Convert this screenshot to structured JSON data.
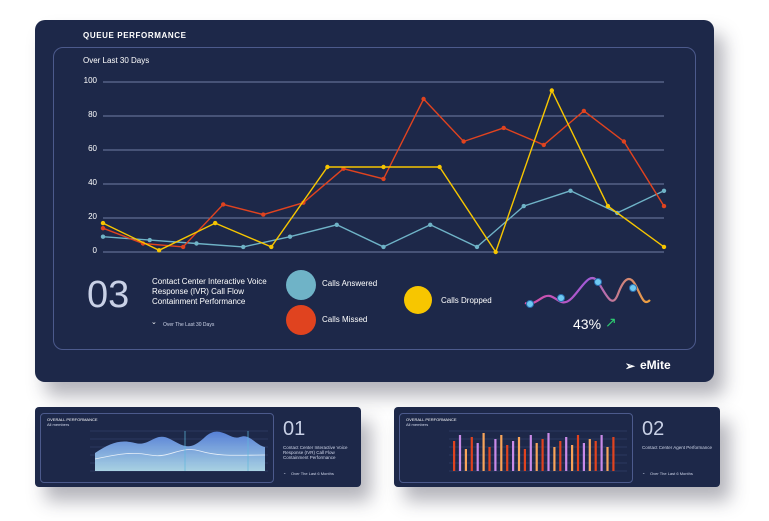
{
  "main": {
    "title": "QUEUE PERFORMANCE",
    "subtitle": "Over Last 30 Days",
    "kpi_number": "03",
    "kpi_label": "Contact Center Interactive Voice Response (IVR) Call Flow Containment Performance",
    "kpi_filter": "Over The Last 30 Days",
    "percent": "43%",
    "brand": "eMite"
  },
  "chart_data": {
    "type": "line",
    "ylim": [
      0,
      100
    ],
    "yticks": [
      "0",
      "20",
      "40",
      "60",
      "80",
      "100"
    ],
    "grid": true,
    "legend_placement": "bottom",
    "series": [
      {
        "name": "Calls Answered",
        "color": "#6fb3c7",
        "points": [
          [
            0,
            9
          ],
          [
            1,
            7
          ],
          [
            2,
            5
          ],
          [
            3,
            3
          ],
          [
            4,
            9
          ],
          [
            5,
            16
          ],
          [
            6,
            3
          ],
          [
            7,
            16
          ],
          [
            8,
            3
          ],
          [
            9,
            27
          ],
          [
            10,
            36
          ],
          [
            11,
            23
          ],
          [
            12,
            36
          ]
        ]
      },
      {
        "name": "Calls Missed",
        "color": "#e0431f",
        "points": [
          [
            0,
            14
          ],
          [
            1,
            5
          ],
          [
            2,
            3
          ],
          [
            3,
            28
          ],
          [
            4,
            22
          ],
          [
            5,
            29
          ],
          [
            6,
            49
          ],
          [
            7,
            43
          ],
          [
            8,
            90
          ],
          [
            9,
            65
          ],
          [
            10,
            73
          ],
          [
            11,
            63
          ],
          [
            12,
            83
          ],
          [
            13,
            65
          ],
          [
            14,
            27
          ]
        ]
      },
      {
        "name": "Calls Dropped",
        "color": "#f7c600",
        "points": [
          [
            0,
            17
          ],
          [
            1,
            1
          ],
          [
            2,
            17
          ],
          [
            3,
            3
          ],
          [
            4,
            50
          ],
          [
            5,
            50
          ],
          [
            6,
            50
          ],
          [
            7,
            0
          ],
          [
            8,
            95
          ],
          [
            9,
            27
          ],
          [
            10,
            3
          ]
        ]
      }
    ]
  },
  "card1": {
    "title": "OVERALL PERFORMANCE",
    "subtitle": "All members",
    "number": "01",
    "label": "Contact Center Interactive Voice Response (IVR) Call Flow Containment Performance",
    "filter": "Over The Last 6 Months"
  },
  "card2": {
    "title": "OVERALL PERFORMANCE",
    "subtitle": "All members",
    "number": "02",
    "label": "Contact Center Agent Performance",
    "filter": "Over The Last 6 Months"
  }
}
